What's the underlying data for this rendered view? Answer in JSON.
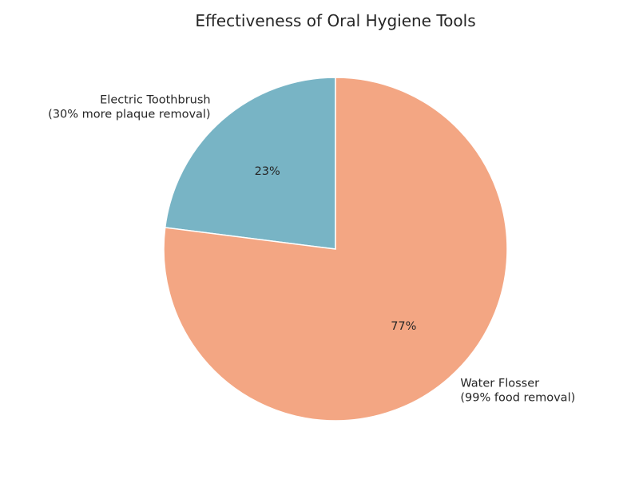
{
  "chart_data": {
    "type": "pie",
    "title": "Effectiveness of Oral Hygiene Tools",
    "labels": [
      "Electric Toothbrush\n(30% more plaque removal)",
      "Water Flosser\n(99% food removal)"
    ],
    "values": [
      23,
      77
    ],
    "percent_labels": [
      "23%",
      "77%"
    ],
    "colors": [
      "#78b4c5",
      "#f3a683"
    ],
    "start_angle": 90,
    "direction": "counterclockwise"
  }
}
